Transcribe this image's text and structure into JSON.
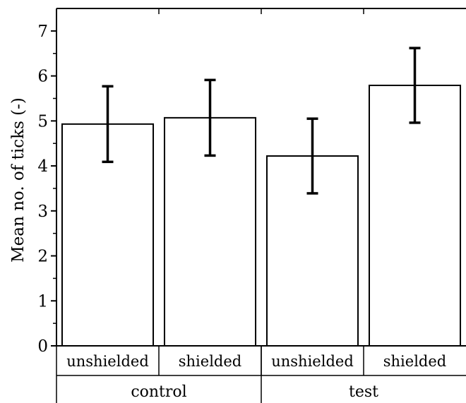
{
  "chart_data": {
    "type": "bar",
    "categories": [
      "unshielded",
      "shielded",
      "unshielded",
      "shielded"
    ],
    "groups": [
      {
        "label": "control",
        "members": [
          0,
          1
        ]
      },
      {
        "label": "test",
        "members": [
          2,
          3
        ]
      }
    ],
    "values": [
      4.93,
      5.07,
      4.22,
      5.79
    ],
    "errors": [
      0.84,
      0.84,
      0.83,
      0.83
    ],
    "title": "",
    "xlabel": "",
    "ylabel": "Mean no. of ticks  (-)",
    "ylim": [
      0,
      7.5
    ],
    "yticks": [
      0,
      1,
      2,
      3,
      4,
      5,
      6,
      7
    ],
    "grid": false,
    "colors": {
      "bar_fill": "#ffffff",
      "bar_stroke": "#000000",
      "error_bar": "#000000"
    }
  }
}
